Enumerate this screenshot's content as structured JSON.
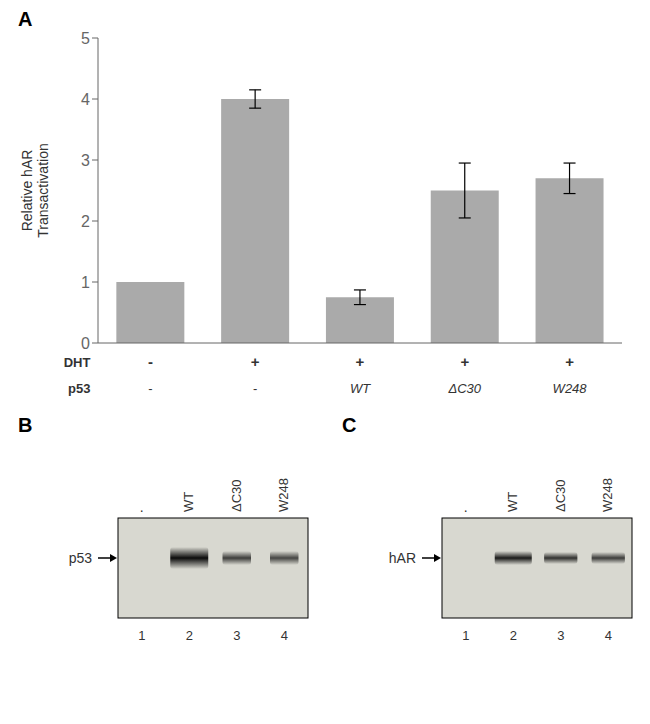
{
  "chart_data": [
    {
      "type": "bar",
      "title": "A",
      "ylabel": "Relative hAR\nTransactivation",
      "xlabel": "p53",
      "categories": [
        "-",
        "-",
        "WT",
        "ΔC30",
        "W248"
      ],
      "secondary_categories": {
        "name": "DHT",
        "labels": [
          "-",
          "+",
          "+",
          "+",
          "+"
        ]
      },
      "values": [
        1.0,
        4.0,
        0.75,
        2.5,
        2.7
      ],
      "errors": [
        0.0,
        0.15,
        0.12,
        0.45,
        0.25
      ],
      "color": "#aaaaaa",
      "ylim": [
        0,
        5
      ],
      "yticks": [
        0,
        1,
        2,
        3,
        4,
        5
      ],
      "grid": false
    },
    {
      "type": "blot",
      "title": "B",
      "annotations": [
        "p53"
      ],
      "categories": [
        ".",
        "WT",
        "ΔC30",
        "W248"
      ],
      "lane_numbers": [
        "1",
        "2",
        "3",
        "4"
      ],
      "color": "#d8d8d0"
    },
    {
      "type": "blot",
      "title": "C",
      "annotations": [
        "hAR"
      ],
      "categories": [
        ".",
        "WT",
        "ΔC30",
        "W248"
      ],
      "lane_numbers": [
        "1",
        "2",
        "3",
        "4"
      ],
      "color": "#d8d8d0"
    }
  ]
}
